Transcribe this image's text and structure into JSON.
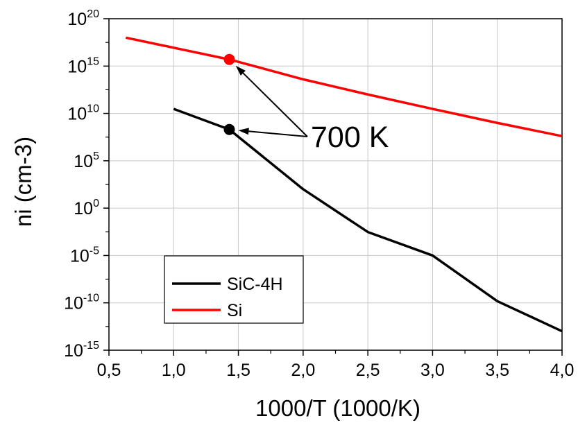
{
  "chart_data": {
    "type": "line",
    "xlabel": "1000/T (1000/K)",
    "ylabel": "ni (cm-3)",
    "xlim": [
      0.5,
      4.0
    ],
    "ylim_log10": [
      -15,
      20
    ],
    "y_scale": "log",
    "grid": true,
    "legend_position": "bottom-left",
    "x_ticks": [
      "0,5",
      "1,0",
      "1,5",
      "2,0",
      "2,5",
      "3,0",
      "3,5",
      "4,0"
    ],
    "y_ticks": [
      {
        "base": "10",
        "exp": "20"
      },
      {
        "base": "10",
        "exp": "15"
      },
      {
        "base": "10",
        "exp": "10"
      },
      {
        "base": "10",
        "exp": "5"
      },
      {
        "base": "10",
        "exp": "0"
      },
      {
        "base": "10",
        "exp": "-5"
      },
      {
        "base": "10",
        "exp": "-10"
      },
      {
        "base": "10",
        "exp": "-15"
      }
    ],
    "series": [
      {
        "name": "SiC-4H",
        "color": "#000000",
        "x": [
          1.0,
          1.43,
          2.0,
          2.5,
          3.0,
          3.5,
          4.0
        ],
        "y": [
          30000000000.0,
          200000000.0,
          100.0,
          0.003,
          1e-05,
          1.5e-10,
          1e-13
        ]
      },
      {
        "name": "Si",
        "color": "#ff0000",
        "x": [
          0.63,
          1.43,
          2.0,
          2.5,
          3.0,
          3.5,
          4.0
        ],
        "y": [
          1e+18,
          5000000000000000.0,
          40000000000000.0,
          1000000000000.0,
          30000000000.0,
          1000000000.0,
          40000000.0
        ]
      }
    ],
    "markers": [
      {
        "series": "SiC-4H",
        "x": 1.43,
        "y": 200000000.0
      },
      {
        "series": "Si",
        "x": 1.43,
        "y": 5000000000000000.0
      }
    ],
    "annotation": {
      "text": "700 K"
    }
  }
}
